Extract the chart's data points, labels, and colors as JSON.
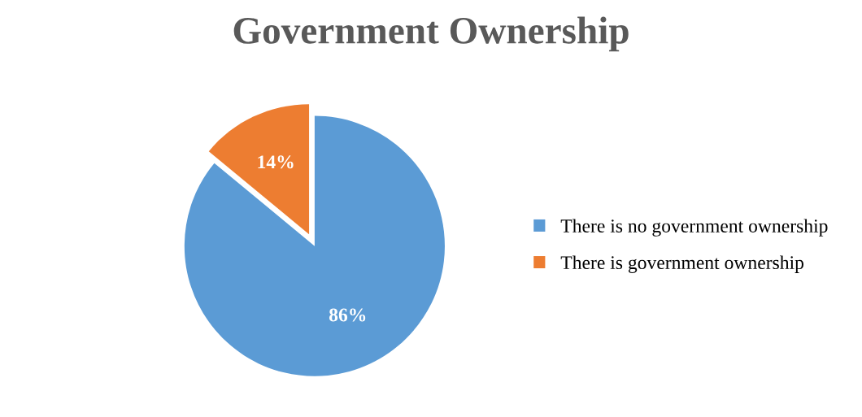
{
  "chart_data": {
    "type": "pie",
    "title": "Government Ownership",
    "categories": [
      "There is no government ownership",
      "There is government ownership"
    ],
    "values": [
      86,
      14
    ],
    "colors": [
      "#5b9bd5",
      "#ed7d31"
    ],
    "value_labels": [
      "86%",
      "14%"
    ],
    "legend": "right"
  }
}
